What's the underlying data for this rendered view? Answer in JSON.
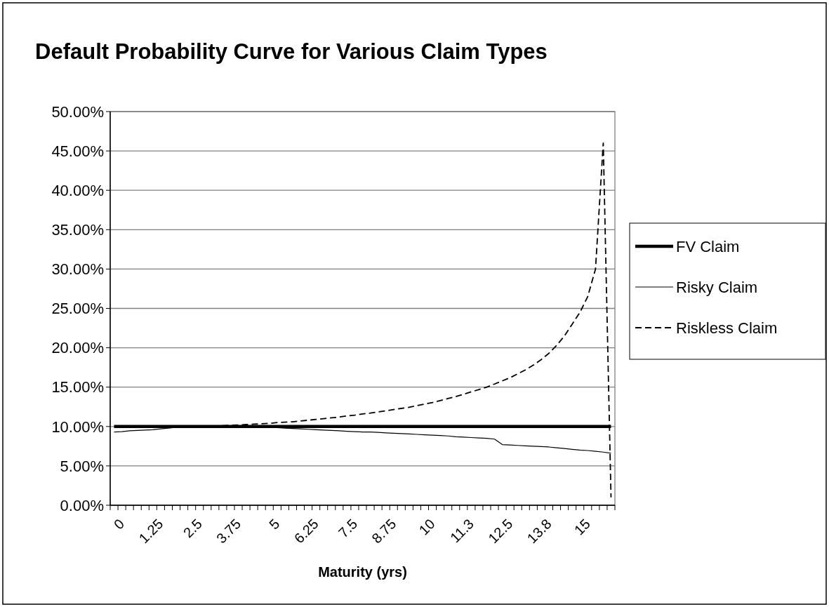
{
  "chart_data": {
    "type": "line",
    "title": "Default Probability Curve for Various Claim Types",
    "xlabel": "Maturity (yrs)",
    "categories": [
      "0",
      null,
      null,
      null,
      null,
      "1.25",
      null,
      null,
      null,
      null,
      "2.5",
      null,
      null,
      null,
      null,
      "3.75",
      null,
      null,
      null,
      null,
      "5",
      null,
      null,
      null,
      null,
      "6.25",
      null,
      null,
      null,
      null,
      "7.5",
      null,
      null,
      null,
      null,
      "8.75",
      null,
      null,
      null,
      null,
      "10",
      null,
      null,
      null,
      null,
      "11.3",
      null,
      null,
      null,
      null,
      "12.5",
      null,
      null,
      null,
      null,
      "13.8",
      null,
      null,
      null,
      null,
      "15",
      null,
      null,
      null,
      null
    ],
    "series": [
      {
        "name": "FV Claim",
        "color": "#000000",
        "line_style": "solid",
        "values": [
          10,
          10,
          10,
          10,
          10,
          10,
          10,
          10,
          10,
          10,
          10,
          10,
          10,
          10,
          10,
          10,
          10,
          10,
          10,
          10,
          10,
          10,
          10,
          10,
          10,
          10,
          10,
          10,
          10,
          10,
          10,
          10,
          10,
          10,
          10,
          10,
          10,
          10,
          10,
          10,
          10,
          10,
          10,
          10,
          10,
          10,
          10,
          10,
          10,
          10,
          10,
          10,
          10,
          10,
          10,
          10,
          10,
          10,
          10,
          10,
          10,
          10,
          10,
          10,
          10
        ]
      },
      {
        "name": "Risky Claim",
        "color": "#000000",
        "line_style": "solid",
        "values": [
          9.3,
          9.35,
          9.45,
          9.5,
          9.55,
          9.6,
          9.7,
          9.8,
          9.9,
          10,
          10,
          10,
          10,
          10,
          10,
          10,
          10,
          10,
          10,
          9.95,
          9.9,
          9.85,
          9.8,
          9.75,
          9.7,
          9.65,
          9.6,
          9.55,
          9.5,
          9.45,
          9.4,
          9.35,
          9.3,
          9.3,
          9.25,
          9.2,
          9.15,
          9.1,
          9.05,
          9,
          8.95,
          8.9,
          8.85,
          8.8,
          8.7,
          8.65,
          8.6,
          8.55,
          8.5,
          8.4,
          7.7,
          7.65,
          7.6,
          7.55,
          7.5,
          7.45,
          7.4,
          7.3,
          7.2,
          7.1,
          7,
          6.95,
          6.85,
          6.75,
          6.6
        ]
      },
      {
        "name": "Riskless Claim",
        "color": "#000000",
        "line_style": "dashed",
        "values": [
          10,
          10,
          10,
          10,
          10,
          10,
          10,
          10,
          10,
          10,
          10,
          10,
          10,
          10.05,
          10.1,
          10.15,
          10.2,
          10.25,
          10.3,
          10.35,
          10.4,
          10.5,
          10.55,
          10.6,
          10.7,
          10.8,
          10.9,
          11,
          11.1,
          11.2,
          11.35,
          11.45,
          11.6,
          11.7,
          11.85,
          12,
          12.15,
          12.3,
          12.45,
          12.65,
          12.85,
          13.05,
          13.3,
          13.55,
          13.8,
          14.1,
          14.4,
          14.7,
          15,
          15.4,
          15.8,
          16.2,
          16.7,
          17.2,
          17.8,
          18.5,
          19.3,
          20.3,
          21.5,
          23,
          24.5,
          26.5,
          30,
          46,
          1
        ]
      }
    ],
    "ylim": [
      0,
      50
    ],
    "yticks": [
      {
        "value": 0,
        "label": "0.00%"
      },
      {
        "value": 5,
        "label": "5.00%"
      },
      {
        "value": 10,
        "label": "10.00%"
      },
      {
        "value": 15,
        "label": "15.00%"
      },
      {
        "value": 20,
        "label": "20.00%"
      },
      {
        "value": 25,
        "label": "25.00%"
      },
      {
        "value": 30,
        "label": "30.00%"
      },
      {
        "value": 35,
        "label": "35.00%"
      },
      {
        "value": 40,
        "label": "40.00%"
      },
      {
        "value": 45,
        "label": "45.00%"
      },
      {
        "value": 50,
        "label": "50.00%"
      }
    ],
    "grid": "y",
    "legend": "right",
    "marker": "none"
  }
}
